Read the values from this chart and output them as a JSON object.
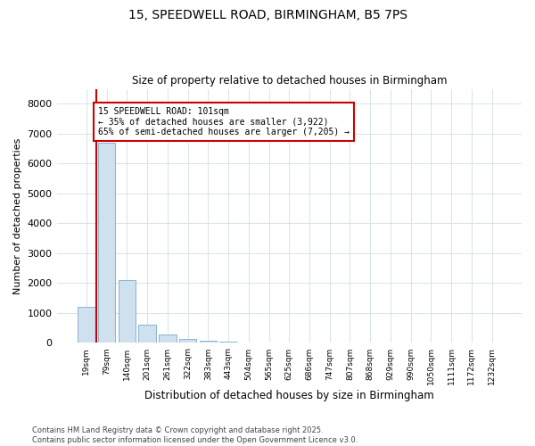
{
  "title_line1": "15, SPEEDWELL ROAD, BIRMINGHAM, B5 7PS",
  "title_line2": "Size of property relative to detached houses in Birmingham",
  "xlabel": "Distribution of detached houses by size in Birmingham",
  "ylabel": "Number of detached properties",
  "annotation_title": "15 SPEEDWELL ROAD: 101sqm",
  "annotation_line2": "← 35% of detached houses are smaller (3,922)",
  "annotation_line3": "65% of semi-detached houses are larger (7,205) →",
  "footer_line1": "Contains HM Land Registry data © Crown copyright and database right 2025.",
  "footer_line2": "Contains public sector information licensed under the Open Government Licence v3.0.",
  "categories": [
    "19sqm",
    "79sqm",
    "140sqm",
    "201sqm",
    "261sqm",
    "322sqm",
    "383sqm",
    "443sqm",
    "504sqm",
    "565sqm",
    "625sqm",
    "686sqm",
    "747sqm",
    "807sqm",
    "868sqm",
    "929sqm",
    "990sqm",
    "1050sqm",
    "1111sqm",
    "1172sqm",
    "1232sqm"
  ],
  "values": [
    1200,
    6700,
    2100,
    600,
    270,
    120,
    60,
    30,
    20,
    10,
    0,
    0,
    0,
    0,
    0,
    0,
    0,
    0,
    0,
    0,
    0
  ],
  "bar_color": "#cfe0ef",
  "bar_edge_color": "#7aaac8",
  "vline_color": "#cc0000",
  "annotation_box_color": "#cc0000",
  "background_color": "#ffffff",
  "grid_color": "#d0dfe8",
  "ylim": [
    0,
    8500
  ],
  "yticks": [
    0,
    1000,
    2000,
    3000,
    4000,
    5000,
    6000,
    7000,
    8000
  ]
}
